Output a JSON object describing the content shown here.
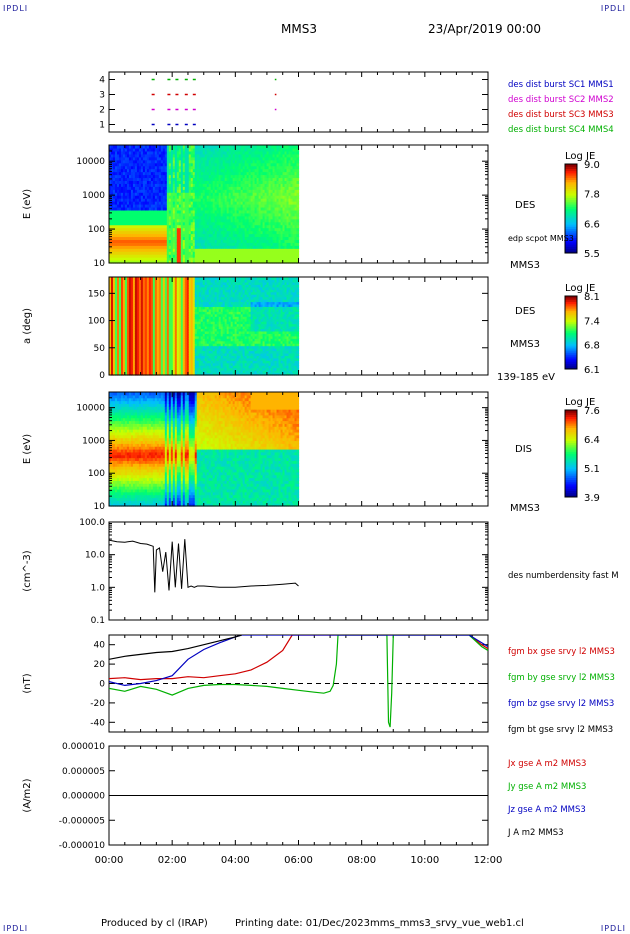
{
  "corners": {
    "tl": "IPDLI",
    "tr": "IPDLI",
    "bl": "IPDLI",
    "br": "IPDLI"
  },
  "header": {
    "spacecraft": "MMS3",
    "date": "23/Apr/2019 00:00"
  },
  "footer": {
    "produced": "Produced by cl (IRAP)",
    "printing": "Printing date: 01/Dec/2023",
    "file": "mms_mms3_srvy_vue_web1.cl"
  },
  "colors": {
    "mms1": "#0000c0",
    "mms2": "#d000d0",
    "mms3": "#d00000",
    "mms4": "#00b000"
  },
  "chart_data": [
    {
      "type": "scatter",
      "id": "burst",
      "ylim": [
        0.5,
        4.5
      ],
      "yticks": [
        1,
        2,
        3,
        4
      ],
      "legend": [
        {
          "name": "des dist burst SC1 MMS1",
          "color": "#0000c0"
        },
        {
          "name": "des dist burst SC2 MMS2",
          "color": "#d000d0"
        },
        {
          "name": "des dist burst SC3 MMS3",
          "color": "#d00000"
        },
        {
          "name": "des dist burst SC4 MMS4",
          "color": "#00b000"
        }
      ],
      "segments": [
        {
          "y": 1,
          "ranges": [
            [
              1.35,
              1.5
            ],
            [
              1.85,
              2.25
            ],
            [
              2.4,
              2.75
            ]
          ],
          "color": "#0000c0"
        },
        {
          "y": 2,
          "ranges": [
            [
              1.35,
              1.5
            ],
            [
              1.85,
              2.25
            ],
            [
              2.4,
              2.75
            ],
            [
              5.25,
              5.3
            ]
          ],
          "color": "#d000d0"
        },
        {
          "y": 3,
          "ranges": [
            [
              1.35,
              1.5
            ],
            [
              1.85,
              2.25
            ],
            [
              2.4,
              2.75
            ],
            [
              5.25,
              5.3
            ]
          ],
          "color": "#d00000"
        },
        {
          "y": 4,
          "ranges": [
            [
              1.35,
              1.5
            ],
            [
              1.85,
              2.25
            ],
            [
              2.4,
              2.75
            ],
            [
              5.25,
              5.3
            ]
          ],
          "color": "#00b000"
        }
      ]
    },
    {
      "type": "heatmap",
      "id": "des_energy",
      "ylabel": "E (eV)",
      "yscale": "log",
      "ylim": [
        10,
        30000
      ],
      "yticks": [
        10,
        100,
        1000,
        10000
      ],
      "data_x_range": [
        0,
        6
      ],
      "instrument": "DES",
      "spacecraft": "MMS3",
      "annotation": "edp scpot MMS3",
      "colorbar": {
        "title": "Log JE",
        "min": 5.5,
        "max": 9.2,
        "ticks": [
          "9.0",
          "7.8",
          "6.6",
          "5.5"
        ]
      }
    },
    {
      "type": "heatmap",
      "id": "des_pitch",
      "ylabel": "a (deg)",
      "ylim": [
        0,
        180
      ],
      "yticks": [
        0,
        50,
        100,
        150
      ],
      "data_x_range": [
        0,
        6
      ],
      "instrument": "DES",
      "spacecraft": "MMS3",
      "energy_range": "139-185 eV",
      "colorbar": {
        "title": "Log JE",
        "min": 6.1,
        "max": 8.2,
        "ticks": [
          "8.1",
          "7.4",
          "6.8",
          "6.1"
        ]
      }
    },
    {
      "type": "heatmap",
      "id": "dis_energy",
      "ylabel": "E (eV)",
      "yscale": "log",
      "ylim": [
        10,
        30000
      ],
      "yticks": [
        10,
        100,
        1000,
        10000
      ],
      "data_x_range": [
        0,
        6
      ],
      "instrument": "DIS",
      "spacecraft": "MMS3",
      "colorbar": {
        "title": "Log JE",
        "min": 3.9,
        "max": 7.7,
        "ticks": [
          "7.6",
          "6.4",
          "5.1",
          "3.9"
        ]
      }
    },
    {
      "type": "line",
      "id": "density",
      "ylabel": "(cm^-3)",
      "yscale": "log",
      "ylim": [
        0.1,
        100
      ],
      "ytick_labels": [
        "0.1",
        "1.0",
        "10.0",
        "100.0"
      ],
      "yticks": [
        0.1,
        1,
        10,
        100
      ],
      "series": [
        {
          "name": "des numberdensity fast M",
          "color": "#000000",
          "x": [
            0,
            0.25,
            0.5,
            0.75,
            1.0,
            1.2,
            1.4,
            1.45,
            1.5,
            1.6,
            1.7,
            1.8,
            1.9,
            2.0,
            2.1,
            2.2,
            2.3,
            2.4,
            2.5,
            2.6,
            2.7,
            2.8,
            3.0,
            3.5,
            4.0,
            4.5,
            5.0,
            5.5,
            5.9,
            6.0
          ],
          "y": [
            28,
            25,
            24,
            26,
            22,
            21,
            18,
            0.7,
            14,
            16,
            3,
            12,
            0.8,
            25,
            1.0,
            22,
            0.9,
            30,
            1.0,
            1.1,
            1.0,
            1.1,
            1.1,
            1.0,
            1.0,
            1.1,
            1.15,
            1.25,
            1.35,
            1.1
          ]
        }
      ]
    },
    {
      "type": "line",
      "id": "fgm",
      "ylabel": "(nT)",
      "ylim": [
        -50,
        50
      ],
      "yticks": [
        -40,
        -20,
        0,
        20,
        40
      ],
      "zero_line": true,
      "series": [
        {
          "name": "fgm bx gse srvy l2 MMS3",
          "color": "#d00000",
          "x": [
            0,
            0.5,
            1.0,
            1.5,
            2.0,
            2.5,
            3.0,
            3.5,
            4.0,
            4.5,
            5.0,
            5.5,
            5.8,
            11.4,
            11.6,
            11.8,
            12.0
          ],
          "y": [
            5,
            6,
            4,
            5,
            5,
            7,
            6,
            8,
            10,
            14,
            22,
            34,
            50,
            50,
            45,
            40,
            36
          ]
        },
        {
          "name": "fgm by gse srvy l2 MMS3",
          "color": "#00b000",
          "x": [
            0,
            0.5,
            1.0,
            1.5,
            2.0,
            2.5,
            3.0,
            3.5,
            4.0,
            4.5,
            5.0,
            5.5,
            6.0,
            6.5,
            6.8,
            7.0,
            7.1,
            7.2,
            7.25,
            8.8,
            8.85,
            8.9,
            8.95,
            9.0,
            11.4,
            11.6,
            11.8,
            12.0
          ],
          "y": [
            -5,
            -8,
            -3,
            -6,
            -12,
            -5,
            -2,
            -1,
            -1,
            -2,
            -3,
            -5,
            -7,
            -9,
            -10,
            -8,
            -2,
            20,
            50,
            50,
            -40,
            -45,
            -10,
            50,
            50,
            44,
            38,
            34
          ]
        },
        {
          "name": "fgm bz gse srvy l2 MMS3",
          "color": "#0000c0",
          "x": [
            0,
            0.5,
            1.0,
            1.5,
            2.0,
            2.5,
            3.0,
            3.5,
            4.0,
            4.2,
            11.4,
            11.6,
            11.8,
            12.0
          ],
          "y": [
            2,
            -2,
            0,
            3,
            8,
            25,
            35,
            42,
            48,
            50,
            50,
            46,
            42,
            38
          ]
        },
        {
          "name": "fgm bt gse srvy l2 MMS3",
          "color": "#000000",
          "x": [
            0,
            0.5,
            1.0,
            1.5,
            2.0,
            2.5,
            3.0,
            3.5,
            4.0,
            4.2
          ],
          "y": [
            25,
            28,
            30,
            32,
            33,
            36,
            40,
            44,
            48,
            50
          ]
        }
      ]
    },
    {
      "type": "line",
      "id": "current",
      "ylabel": "(A/m2)",
      "ylim": [
        -1e-05,
        1e-05
      ],
      "yticks": [
        -1e-05,
        -5e-06,
        0,
        5e-06,
        1e-05
      ],
      "ytick_labels": [
        "-0.000010",
        "-0.000005",
        "0.000000",
        "0.000005",
        "0.000010"
      ],
      "series": [
        {
          "name": "Jx gse A m2 MMS3",
          "color": "#d00000"
        },
        {
          "name": "Jy gse A m2 MMS3",
          "color": "#00b000"
        },
        {
          "name": "Jz gse A m2 MMS3",
          "color": "#0000c0"
        },
        {
          "name": "J A m2 MMS3",
          "color": "#000000"
        }
      ],
      "xlim": [
        0,
        12
      ],
      "xticks": [
        0,
        2,
        4,
        6,
        8,
        10,
        12
      ],
      "xtick_labels": [
        "00:00",
        "02:00",
        "04:00",
        "06:00",
        "08:00",
        "10:00",
        "12:00"
      ]
    }
  ]
}
